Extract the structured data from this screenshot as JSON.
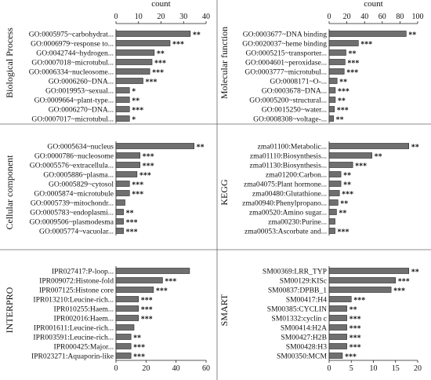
{
  "chart_data": [
    {
      "type": "bar",
      "panel_label": "Biological Process",
      "xlabel": "count",
      "xlim": [
        0,
        40
      ],
      "ticks": [
        0,
        10,
        20,
        30,
        40
      ],
      "categories": [
        "GO:0005975~carbohydrat...",
        "GO:0006979~response to...",
        "GO:0042744~hydrogen...",
        "GO:0007018~microtubul...",
        "GO:0006334~nucleosome...",
        "GO:0006260~DNA...",
        "GO:0019953~sexual...",
        "GO:0009664~plant-type...",
        "GO:0006270~DNA...",
        "GO:0007017~microtubul..."
      ],
      "values": [
        33,
        24,
        17,
        16,
        15,
        12,
        6,
        6,
        6,
        6
      ],
      "significance": [
        "**",
        "***",
        "**",
        "***",
        "***",
        "***",
        "*",
        "**",
        "***",
        "*"
      ]
    },
    {
      "type": "bar",
      "panel_label": "Molecular function",
      "xlabel": "count",
      "xlim": [
        0,
        100
      ],
      "ticks": [
        0,
        20,
        40,
        60,
        80,
        100
      ],
      "categories": [
        "GO:0003677~DNA binding",
        "GO:0020037~heme binding",
        "GO:0005215~transporter...",
        "GO:0004601~peroxidase...",
        "GO:0003777~microtubul...",
        "GO:0008171~O-...",
        "GO:0003678~DNA...",
        "GO:0005200~structural...",
        "GO:0015250~water...",
        "GO:0008308~voltage-..."
      ],
      "values": [
        87,
        33,
        19,
        18,
        17,
        9,
        7,
        7,
        6,
        5
      ],
      "significance": [
        "**",
        "***",
        "**",
        "***",
        "***",
        "**",
        "***",
        "**",
        "***",
        "**"
      ]
    },
    {
      "type": "bar",
      "panel_label": "Cellular component",
      "xlim": [
        0,
        60
      ],
      "ticks": [],
      "categories": [
        "GO:0005634~nucleus",
        "GO:0000786~nucleosome",
        "GO:0005576~extracellula...",
        "GO:0005886~plasma...",
        "GO:0005829~cytosol",
        "GO:0005874~microtubule",
        "GO:0005739~mitochondr...",
        "GO:0005783~endoplasmi...",
        "GO:0009506~plasmodesma",
        "GO:0005774~vacuolar..."
      ],
      "values": [
        52,
        16,
        16,
        14,
        9,
        9,
        6,
        5,
        5,
        5
      ],
      "significance": [
        "**",
        "***",
        "***",
        "***",
        "***",
        "***",
        "",
        "**",
        "***",
        "***"
      ]
    },
    {
      "type": "bar",
      "panel_label": "KEGG",
      "xlim": [
        0,
        60
      ],
      "ticks": [],
      "categories": [
        "zma01100:Metabolic...",
        "zma01110:Biosynthesis...",
        "zma01130:Biosynthesis...",
        "zma01200:Carbon...",
        "zma04075:Plant hormone...",
        "zma00480:Glutathione...",
        "zma00940:Phenylpropano...",
        "zma00520:Amino sugar...",
        "zma00230:Purine...",
        "zma00053:Ascorbate and..."
      ],
      "values": [
        54,
        29,
        16,
        8,
        8,
        7,
        6,
        5,
        4,
        4
      ],
      "significance": [
        "**",
        "**",
        "***",
        "**",
        "**",
        "***",
        "**",
        "**",
        "",
        "***"
      ]
    },
    {
      "type": "bar",
      "panel_label": "INTERPRO",
      "xlim": [
        0,
        60
      ],
      "ticks": [
        0,
        20,
        40,
        60
      ],
      "categories": [
        "IPR027417:P-loop...",
        "IPR009072:Histone-fold",
        "IPR007125:Histone core",
        "IPR013210:Leucine-rich...",
        "IPR010255:Haem...",
        "IPR002016:Haem...",
        "IPR001611:Leucine-rich...",
        "IPR003591:Leucine-rich...",
        "IPR000425:Major...",
        "IPR023271:Aquaporin-like"
      ],
      "values": [
        49,
        31,
        25,
        15,
        15,
        15,
        12,
        10,
        10,
        10
      ],
      "significance": [
        "",
        "***",
        "***",
        "***",
        "***",
        "***",
        "",
        "**",
        "***",
        "***"
      ]
    },
    {
      "type": "bar",
      "panel_label": "SMART",
      "xlim": [
        0,
        20
      ],
      "ticks": [
        0,
        5,
        10,
        15,
        20
      ],
      "categories": [
        "SM00369:LRR_TYP",
        "SM00129:KISc",
        "SM00837:DPBB_1",
        "SM00417:H4",
        "SM00385:CYCLIN",
        "SM01332:cyclin c",
        "SM00414:H2A",
        "SM00427:H2B",
        "SM00428:H3",
        "SM00350:MCM"
      ],
      "values": [
        18,
        15,
        14,
        5,
        4,
        4,
        4,
        4,
        4,
        3
      ],
      "significance": [
        "**",
        "***",
        "***",
        "***",
        "**",
        "***",
        "***",
        "***",
        "***",
        "***"
      ]
    }
  ]
}
